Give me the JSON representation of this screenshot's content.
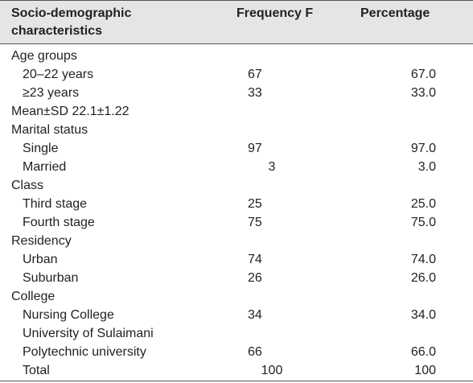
{
  "header": {
    "col1": "Socio-demographic characteristics",
    "col2": "Frequency F",
    "col3": "Percentage"
  },
  "rows": [
    {
      "label": "Age groups",
      "freq": "",
      "pct": "",
      "indent": false
    },
    {
      "label": "20–22 years",
      "freq": "67",
      "pct": "67.0",
      "indent": true
    },
    {
      "label": "≥23 years",
      "freq": "33",
      "pct": "33.0",
      "indent": true
    },
    {
      "label": "Mean±SD 22.1±1.22",
      "freq": "",
      "pct": "",
      "indent": false
    },
    {
      "label": "Marital status",
      "freq": "",
      "pct": "",
      "indent": false
    },
    {
      "label": "Single",
      "freq": "97",
      "pct": "97.0",
      "indent": true
    },
    {
      "label": "Married",
      "freq": "3",
      "pct": "3.0",
      "indent": true,
      "center": true
    },
    {
      "label": "Class",
      "freq": "",
      "pct": "",
      "indent": false
    },
    {
      "label": "Third stage",
      "freq": "25",
      "pct": "25.0",
      "indent": true
    },
    {
      "label": "Fourth stage",
      "freq": "75",
      "pct": "75.0",
      "indent": true
    },
    {
      "label": "Residency",
      "freq": "",
      "pct": "",
      "indent": false
    },
    {
      "label": "Urban",
      "freq": "74",
      "pct": "74.0",
      "indent": true
    },
    {
      "label": "Suburban",
      "freq": "26",
      "pct": "26.0",
      "indent": true
    },
    {
      "label": "College",
      "freq": "",
      "pct": "",
      "indent": false
    },
    {
      "label": "Nursing College",
      "freq": "34",
      "pct": "34.0",
      "indent": true
    },
    {
      "label": "University of Sulaimani",
      "freq": "",
      "pct": "",
      "indent": true
    },
    {
      "label": "Polytechnic university",
      "freq": "66",
      "pct": "66.0",
      "indent": true
    },
    {
      "label": "Total",
      "freq": "100",
      "pct": "100",
      "indent": true,
      "center": true
    }
  ]
}
